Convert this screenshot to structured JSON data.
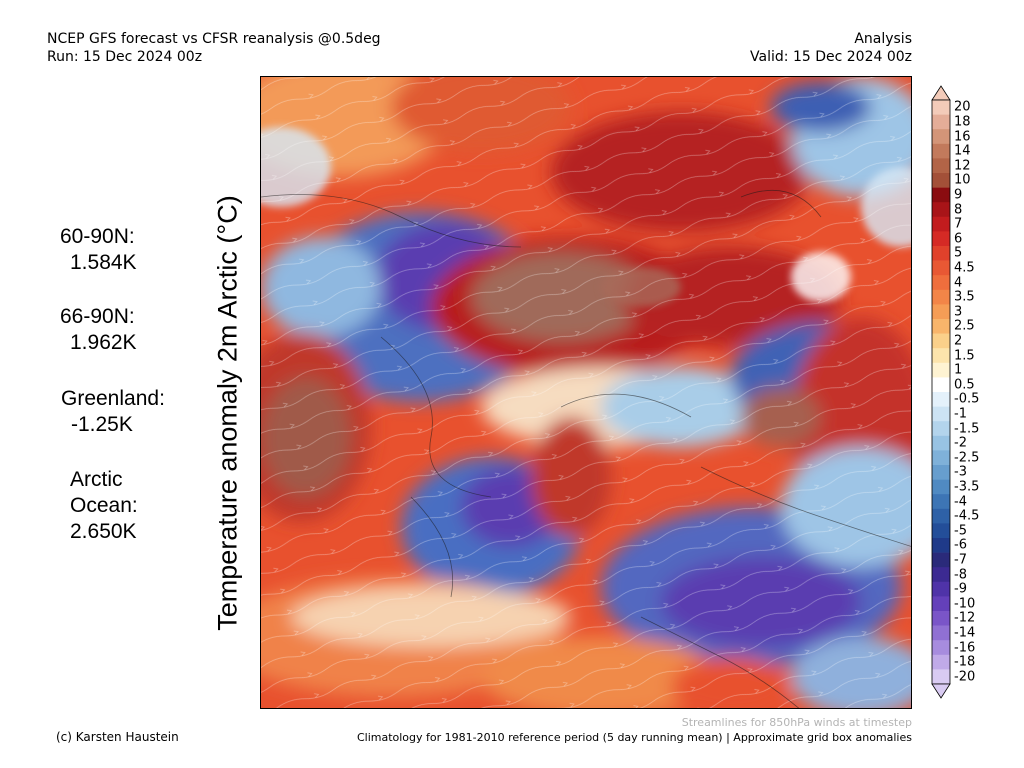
{
  "header": {
    "title_line1": "NCEP GFS forecast vs CFSR reanalysis @0.5deg",
    "title_line2": "Run: 15 Dec 2024 00z",
    "right_line1": "Analysis",
    "right_line2": "Valid: 15 Dec 2024 00z"
  },
  "ylabel": "Temperature anomaly 2m Arctic (°C)",
  "stats": [
    {
      "label": "60-90N:",
      "value": "1.584K"
    },
    {
      "label": "66-90N:",
      "value": "1.962K"
    },
    {
      "label": "Greenland:",
      "value": "-1.25K"
    },
    {
      "label": "Arctic Ocean:",
      "value": "2.650K"
    }
  ],
  "colorbar": {
    "ticks": [
      "20",
      "18",
      "16",
      "14",
      "12",
      "10",
      "9",
      "8",
      "7",
      "6",
      "5",
      "4.5",
      "4",
      "3.5",
      "3",
      "2.5",
      "2",
      "1.5",
      "1",
      "0.5",
      "-0.5",
      "-1",
      "-1.5",
      "-2",
      "-2.5",
      "-3",
      "-3.5",
      "-4",
      "-4.5",
      "-5",
      "-6",
      "-7",
      "-8",
      "-9",
      "-10",
      "-12",
      "-14",
      "-16",
      "-18",
      "-20"
    ],
    "colors": [
      "#f3cbb9",
      "#e4ad98",
      "#d39578",
      "#c27a5c",
      "#b26447",
      "#a35038",
      "#8a0c10",
      "#a81418",
      "#c21c1e",
      "#d52a25",
      "#e0412b",
      "#e85834",
      "#ef6e3d",
      "#f28548",
      "#f59d56",
      "#f8b56b",
      "#fad08a",
      "#fce4ac",
      "#fef3d2",
      "#ffffff",
      "#e4f1fb",
      "#cce3f4",
      "#b3d4ec",
      "#98c3e3",
      "#7fb1d9",
      "#679ece",
      "#508ac2",
      "#3d75b5",
      "#2e61a7",
      "#234e99",
      "#1f3a89",
      "#2a2a7a",
      "#3c2a92",
      "#4f33a8",
      "#6440ba",
      "#7a55c8",
      "#9070d3",
      "#a78cde",
      "#c0aae8",
      "#d9cbf2"
    ]
  },
  "footer": {
    "streamlines_note": "Streamlines for 850hPa winds at timestep",
    "credit": "(c) Karsten Haustein",
    "climatology_note": "Climatology for 1981-2010 reference period (5 day running mean) | Approximate grid box anomalies"
  }
}
